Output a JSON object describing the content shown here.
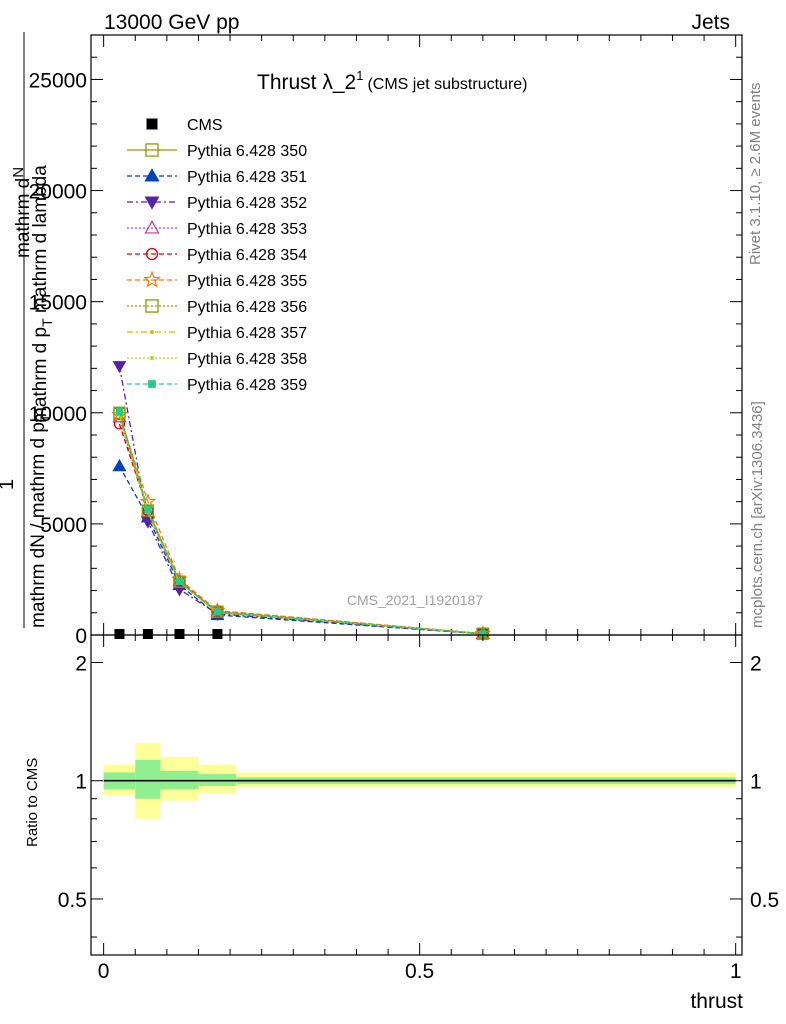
{
  "header": {
    "left": "13000 GeV pp",
    "right": "Jets"
  },
  "side": {
    "rivet": "Rivet 3.1.10, ≥ 2.6M events",
    "mcplots": "mcplots.cern.ch [arXiv:1306.3436]"
  },
  "watermark": "CMS_2021_I1920187",
  "colors": {
    "ratio_band_inner": "#90f090",
    "ratio_band_outer": "#ffff99",
    "cms": "#000000"
  },
  "chart_data": [
    {
      "type": "line",
      "panel": "main",
      "title": "Thrust λ_2",
      "title_superscript": "1",
      "title_suffix": "(CMS jet substructure)",
      "ylabel_line1": "mathrm d",
      "ylabel_N": "N",
      "ylabel_line2": "mathrm d p",
      "ylabel_sub_T": "T",
      "ylabel_line2b": " mathrm d lambda",
      "ylabel_one": "1",
      "ylabel_denom": "mathrm dN / mathrm d p",
      "ylabel_denom_sub": "T",
      "xlim": [
        -0.02,
        1.01
      ],
      "ylim": [
        0,
        27000
      ],
      "yticks": [
        0,
        5000,
        10000,
        15000,
        20000,
        25000
      ],
      "ytick_labels": [
        "0",
        "5000",
        "10000",
        "15000",
        "20000",
        "25000"
      ],
      "legend_position": "top-left",
      "x": [
        0.025,
        0.07,
        0.12,
        0.18,
        0.6
      ],
      "series": [
        {
          "name": "CMS",
          "color": "#000000",
          "marker": "square-filled",
          "dash": "",
          "values": [
            0,
            0,
            0,
            0,
            0
          ]
        },
        {
          "name": "Pythia 6.428 350",
          "color": "#999900",
          "marker": "square-open",
          "dash": "",
          "values": [
            9950,
            5500,
            2380,
            1000,
            60
          ]
        },
        {
          "name": "Pythia 6.428 351",
          "color": "#0044bb",
          "marker": "triangle-up-filled",
          "dash": "5,3",
          "values": [
            7600,
            5300,
            2250,
            900,
            50
          ]
        },
        {
          "name": "Pythia 6.428 352",
          "color": "#5522aa",
          "marker": "triangle-down-filled",
          "dash": "6,3,2,3",
          "values": [
            12100,
            5100,
            2050,
            950,
            55
          ]
        },
        {
          "name": "Pythia 6.428 353",
          "color": "#cc3399",
          "marker": "triangle-up-open",
          "dash": "2,2",
          "values": [
            9800,
            5550,
            2400,
            1050,
            60
          ]
        },
        {
          "name": "Pythia 6.428 354",
          "color": "#dd0000",
          "marker": "circle-open",
          "dash": "5,3",
          "values": [
            9500,
            5600,
            2420,
            1080,
            60
          ]
        },
        {
          "name": "Pythia 6.428 355",
          "color": "#ff7700",
          "marker": "star-open",
          "dash": "5,3",
          "values": [
            9900,
            6000,
            2500,
            1100,
            62
          ]
        },
        {
          "name": "Pythia 6.428 356",
          "color": "#889900",
          "marker": "square-open",
          "dash": "2,2",
          "values": [
            10000,
            5600,
            2400,
            1050,
            60
          ]
        },
        {
          "name": "Pythia 6.428 357",
          "color": "#ddbb00",
          "marker": "small-dot",
          "dash": "6,3,2,3",
          "values": [
            9950,
            5550,
            2380,
            1020,
            60
          ]
        },
        {
          "name": "Pythia 6.428 358",
          "color": "#aadd00",
          "marker": "small-dot",
          "dash": "2,2",
          "values": [
            9900,
            5500,
            2370,
            1010,
            60
          ]
        },
        {
          "name": "Pythia 6.428 359",
          "color": "#22cc88",
          "marker": "square-small-filled",
          "dash": "5,3",
          "values": [
            10050,
            5650,
            2400,
            1030,
            60
          ]
        }
      ]
    },
    {
      "type": "area",
      "panel": "ratio",
      "ylabel": "Ratio to CMS",
      "xlabel": "thrust",
      "xlim": [
        -0.02,
        1.01
      ],
      "ylim": [
        0.36,
        2.35
      ],
      "yticks": [
        0.5,
        1,
        2
      ],
      "ytick_labels": [
        "0.5",
        "1",
        "2"
      ],
      "xticks": [
        0,
        0.5,
        1
      ],
      "xtick_labels": [
        "0",
        "0.5",
        "1"
      ],
      "bins": [
        {
          "x0": 0.0,
          "x1": 0.05,
          "inner": [
            0.95,
            1.05
          ],
          "outer": [
            0.92,
            1.1
          ]
        },
        {
          "x0": 0.05,
          "x1": 0.09,
          "inner": [
            0.9,
            1.13
          ],
          "outer": [
            0.8,
            1.25
          ]
        },
        {
          "x0": 0.09,
          "x1": 0.15,
          "inner": [
            0.95,
            1.06
          ],
          "outer": [
            0.89,
            1.15
          ]
        },
        {
          "x0": 0.15,
          "x1": 0.21,
          "inner": [
            0.97,
            1.04
          ],
          "outer": [
            0.93,
            1.1
          ]
        },
        {
          "x0": 0.21,
          "x1": 1.0,
          "inner": [
            0.98,
            1.02
          ],
          "outer": [
            0.96,
            1.05
          ]
        }
      ]
    }
  ]
}
